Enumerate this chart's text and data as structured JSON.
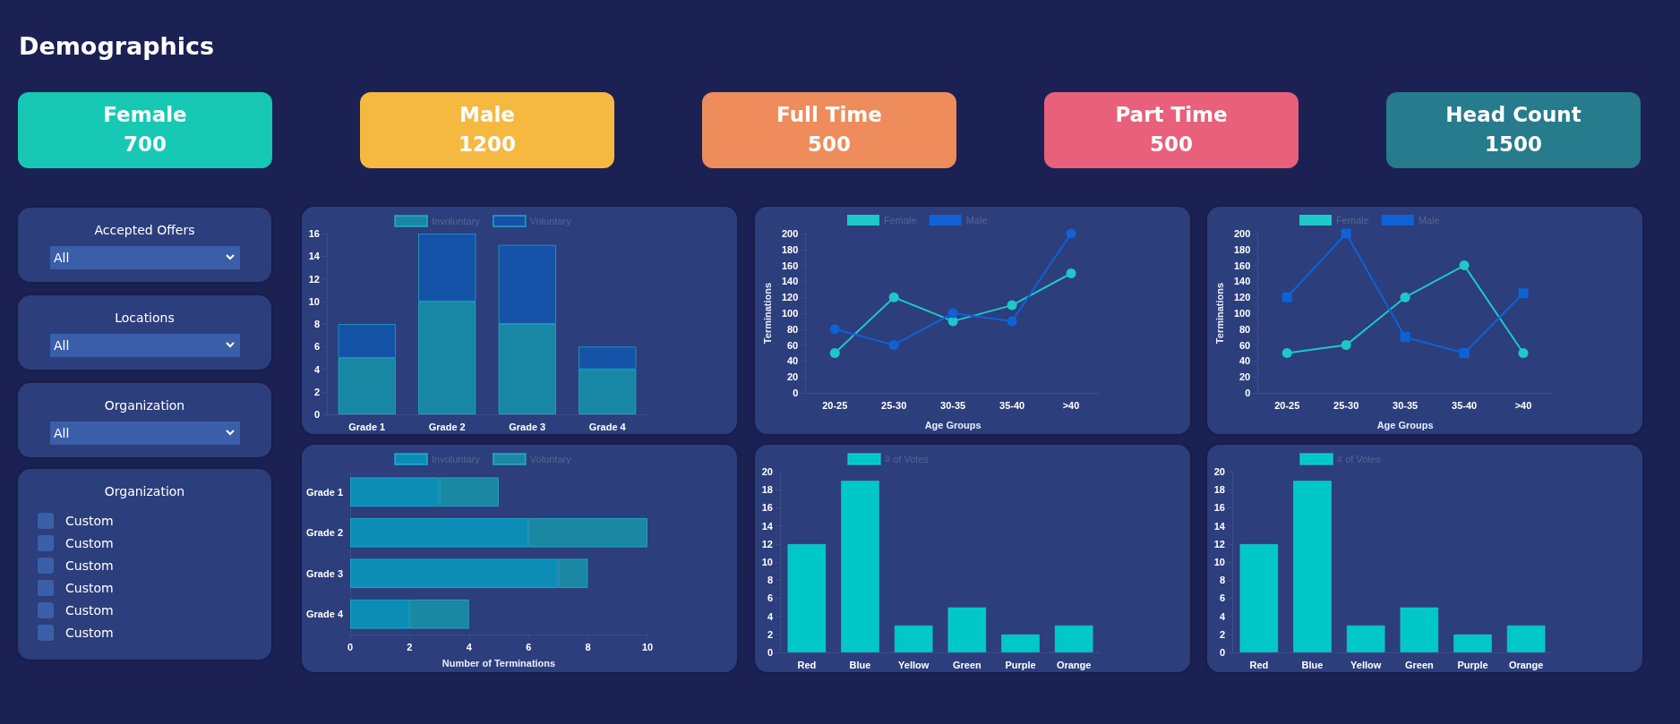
{
  "chart_data": [
    {
      "type": "other",
      "title": "Demographics",
      "categories": [
        "Female",
        "Male",
        "Full Time",
        "Part Time",
        "Head Count"
      ],
      "values": [
        700,
        1200,
        500,
        500,
        1500
      ],
      "data_labels": true,
      "colors": [
        "#17c9b4",
        "#f5b942",
        "#ee8c5c",
        "#e8607a",
        "#267b8c"
      ]
    },
    {
      "type": "other",
      "categories": [
        "Accepted Offers",
        "Locations",
        "Organization"
      ],
      "annotations": [
        "All",
        "All",
        "All"
      ]
    },
    {
      "type": "other",
      "title": "Organization",
      "categories": [
        "Custom",
        "Custom",
        "Custom",
        "Custom",
        "Custom",
        "Custom"
      ]
    },
    {
      "type": "bar",
      "stacked": true,
      "categories": [
        "Grade 1",
        "Grade 2",
        "Grade 3",
        "Grade 4"
      ],
      "ylim": [
        0,
        16
      ],
      "yticks": [
        0,
        2,
        4,
        6,
        8,
        10,
        12,
        14,
        16
      ],
      "legend": "top",
      "series": [
        {
          "name": "Involuntary",
          "color": "#1787a3",
          "values": [
            5,
            10,
            8,
            4
          ]
        },
        {
          "name": "Voluntary",
          "color": "#1452a8",
          "values": [
            3,
            6,
            7,
            2
          ]
        }
      ]
    },
    {
      "type": "line",
      "categories": [
        "20-25",
        "25-30",
        "30-35",
        "35-40",
        ">40"
      ],
      "xlabel": "Age Groups",
      "ylabel": "Terminations",
      "ylim": [
        0,
        200
      ],
      "yticks": [
        0,
        20,
        40,
        60,
        80,
        100,
        120,
        140,
        160,
        180,
        200
      ],
      "legend": "top",
      "marker": "circle",
      "series": [
        {
          "name": "Female",
          "color": "#1ec8c8",
          "values": [
            50,
            120,
            90,
            110,
            150
          ]
        },
        {
          "name": "Male",
          "color": "#0f62d6",
          "values": [
            80,
            60,
            100,
            90,
            200
          ]
        }
      ]
    },
    {
      "type": "line",
      "categories": [
        "20-25",
        "25-30",
        "30-35",
        "35-40",
        ">40"
      ],
      "xlabel": "Age Groups",
      "ylabel": "Terminations",
      "ylim": [
        0,
        200
      ],
      "yticks": [
        0,
        20,
        40,
        60,
        80,
        100,
        120,
        140,
        160,
        180,
        200
      ],
      "legend": "top",
      "marker": "circle",
      "series": [
        {
          "name": "Female",
          "color": "#1ec8c8",
          "values": [
            50,
            60,
            120,
            160,
            50
          ]
        },
        {
          "name": "Male",
          "color": "#0f62d6",
          "marker": "square",
          "values": [
            120,
            200,
            70,
            50,
            125
          ]
        }
      ]
    },
    {
      "type": "bar",
      "stacked": true,
      "orientation": "horizontal",
      "categories": [
        "Grade 1",
        "Grade 2",
        "Grade 3",
        "Grade 4"
      ],
      "xlabel": "Number of Terminations",
      "xlim": [
        0,
        10
      ],
      "xticks": [
        0,
        2,
        4,
        6,
        8,
        10
      ],
      "legend": "top",
      "series": [
        {
          "name": "Involuntary",
          "color": "#0b8db5",
          "values": [
            3,
            6,
            7,
            2
          ]
        },
        {
          "name": "Voluntary",
          "color": "#1a87a3",
          "values": [
            2,
            4,
            1,
            2
          ]
        }
      ]
    },
    {
      "type": "bar",
      "categories": [
        "Red",
        "Blue",
        "Yellow",
        "Green",
        "Purple",
        "Orange"
      ],
      "ylim": [
        0,
        20
      ],
      "yticks": [
        0,
        2,
        4,
        6,
        8,
        10,
        12,
        14,
        16,
        18,
        20
      ],
      "legend": "top",
      "series": [
        {
          "name": "# of Votes",
          "color": "#00c8c8",
          "values": [
            12,
            19,
            3,
            5,
            2,
            3
          ]
        }
      ]
    },
    {
      "type": "bar",
      "categories": [
        "Red",
        "Blue",
        "Yellow",
        "Green",
        "Purple",
        "Orange"
      ],
      "ylim": [
        0,
        20
      ],
      "yticks": [
        0,
        2,
        4,
        6,
        8,
        10,
        12,
        14,
        16,
        18,
        20
      ],
      "legend": "top",
      "series": [
        {
          "name": "# of Votes",
          "color": "#00c8c8",
          "values": [
            12,
            19,
            3,
            5,
            2,
            3
          ]
        }
      ]
    }
  ]
}
